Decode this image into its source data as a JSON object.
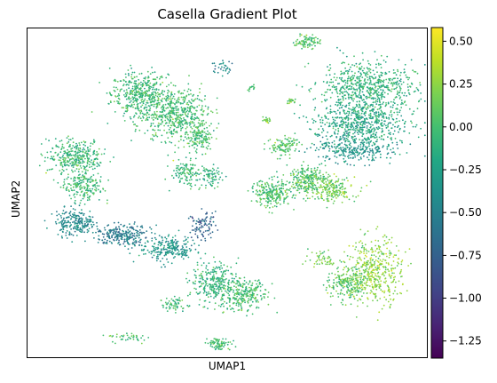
{
  "chart_data": {
    "type": "scatter",
    "title": "Casella Gradient Plot",
    "xlabel": "UMAP1",
    "ylabel": "UMAP2",
    "colorbar": {
      "colormap": "viridis",
      "range": [
        -1.35,
        0.58
      ],
      "ticks": [
        0.5,
        0.25,
        0.0,
        -0.25,
        -0.5,
        -0.75,
        -1.0,
        -1.25
      ],
      "tick_labels": [
        "0.50",
        "0.25",
        "0.00",
        "−0.25",
        "−0.50",
        "−0.75",
        "−1.00",
        "−1.25"
      ]
    },
    "grid": false,
    "x_ticks_shown": false,
    "y_ticks_shown": false,
    "clusters": [
      {
        "x": 0.28,
        "y": 0.8,
        "rx": 0.07,
        "ry": 0.07,
        "value": -0.05,
        "n": 420
      },
      {
        "x": 0.37,
        "y": 0.74,
        "rx": 0.08,
        "ry": 0.08,
        "value": -0.02,
        "n": 520
      },
      {
        "x": 0.43,
        "y": 0.67,
        "rx": 0.03,
        "ry": 0.04,
        "value": -0.02,
        "n": 140
      },
      {
        "x": 0.49,
        "y": 0.88,
        "rx": 0.03,
        "ry": 0.02,
        "value": -0.45,
        "n": 30
      },
      {
        "x": 0.12,
        "y": 0.61,
        "rx": 0.07,
        "ry": 0.05,
        "value": -0.05,
        "n": 320
      },
      {
        "x": 0.14,
        "y": 0.52,
        "rx": 0.05,
        "ry": 0.05,
        "value": -0.05,
        "n": 200
      },
      {
        "x": 0.12,
        "y": 0.41,
        "rx": 0.05,
        "ry": 0.04,
        "value": -0.45,
        "n": 220
      },
      {
        "x": 0.24,
        "y": 0.37,
        "rx": 0.07,
        "ry": 0.03,
        "value": -0.55,
        "n": 240
      },
      {
        "x": 0.35,
        "y": 0.33,
        "rx": 0.07,
        "ry": 0.04,
        "value": -0.35,
        "n": 240
      },
      {
        "x": 0.44,
        "y": 0.4,
        "rx": 0.03,
        "ry": 0.04,
        "value": -0.75,
        "n": 90
      },
      {
        "x": 0.47,
        "y": 0.23,
        "rx": 0.06,
        "ry": 0.06,
        "value": -0.1,
        "n": 280
      },
      {
        "x": 0.54,
        "y": 0.19,
        "rx": 0.06,
        "ry": 0.05,
        "value": 0.0,
        "n": 260
      },
      {
        "x": 0.48,
        "y": 0.04,
        "rx": 0.03,
        "ry": 0.02,
        "value": -0.02,
        "n": 80
      },
      {
        "x": 0.25,
        "y": 0.06,
        "rx": 0.04,
        "ry": 0.015,
        "value": 0.02,
        "n": 40
      },
      {
        "x": 0.37,
        "y": 0.16,
        "rx": 0.04,
        "ry": 0.02,
        "value": -0.05,
        "n": 60
      },
      {
        "x": 0.61,
        "y": 0.5,
        "rx": 0.05,
        "ry": 0.04,
        "value": 0.02,
        "n": 240
      },
      {
        "x": 0.7,
        "y": 0.54,
        "rx": 0.05,
        "ry": 0.04,
        "value": 0.05,
        "n": 240
      },
      {
        "x": 0.76,
        "y": 0.51,
        "rx": 0.06,
        "ry": 0.04,
        "value": 0.15,
        "n": 200
      },
      {
        "x": 0.64,
        "y": 0.64,
        "rx": 0.04,
        "ry": 0.03,
        "value": 0.05,
        "n": 110
      },
      {
        "x": 0.4,
        "y": 0.56,
        "rx": 0.04,
        "ry": 0.04,
        "value": -0.05,
        "n": 120
      },
      {
        "x": 0.46,
        "y": 0.55,
        "rx": 0.03,
        "ry": 0.03,
        "value": -0.15,
        "n": 70
      },
      {
        "x": 0.7,
        "y": 0.96,
        "rx": 0.03,
        "ry": 0.02,
        "value": 0.05,
        "n": 90
      },
      {
        "x": 0.85,
        "y": 0.82,
        "rx": 0.12,
        "ry": 0.08,
        "value": -0.1,
        "n": 650
      },
      {
        "x": 0.83,
        "y": 0.71,
        "rx": 0.11,
        "ry": 0.07,
        "value": -0.2,
        "n": 560
      },
      {
        "x": 0.82,
        "y": 0.63,
        "rx": 0.1,
        "ry": 0.04,
        "value": -0.35,
        "n": 280
      },
      {
        "x": 0.87,
        "y": 0.26,
        "rx": 0.07,
        "ry": 0.1,
        "value": 0.25,
        "n": 460
      },
      {
        "x": 0.8,
        "y": 0.22,
        "rx": 0.05,
        "ry": 0.05,
        "value": 0.05,
        "n": 200
      },
      {
        "x": 0.74,
        "y": 0.3,
        "rx": 0.04,
        "ry": 0.03,
        "value": 0.18,
        "n": 50
      },
      {
        "x": 0.6,
        "y": 0.72,
        "rx": 0.01,
        "ry": 0.01,
        "value": 0.15,
        "n": 20
      },
      {
        "x": 0.66,
        "y": 0.78,
        "rx": 0.01,
        "ry": 0.01,
        "value": 0.15,
        "n": 20
      },
      {
        "x": 0.56,
        "y": 0.82,
        "rx": 0.01,
        "ry": 0.01,
        "value": 0.05,
        "n": 15
      }
    ]
  }
}
